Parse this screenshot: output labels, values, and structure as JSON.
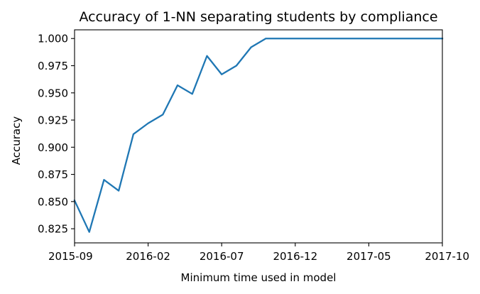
{
  "chart_data": {
    "type": "line",
    "title": "Accuracy of 1-NN separating students by compliance",
    "xlabel": "Minimum time used in model",
    "ylabel": "Accuracy",
    "xlim": [
      "2015-09",
      "2017-10"
    ],
    "ylim": [
      0.812,
      1.008
    ],
    "x_ticks": [
      "2015-09",
      "2016-02",
      "2016-07",
      "2016-12",
      "2017-05",
      "2017-10"
    ],
    "y_ticks": [
      "0.825",
      "0.850",
      "0.875",
      "0.900",
      "0.925",
      "0.950",
      "0.975",
      "1.000"
    ],
    "grid": false,
    "series": [
      {
        "color": "#1f77b4",
        "x": [
          "2015-09",
          "2015-10",
          "2015-11",
          "2015-12",
          "2016-01",
          "2016-02",
          "2016-03",
          "2016-04",
          "2016-05",
          "2016-06",
          "2016-07",
          "2016-08",
          "2016-09",
          "2016-10",
          "2016-11",
          "2016-12",
          "2017-01",
          "2017-02",
          "2017-03",
          "2017-04",
          "2017-05",
          "2017-06",
          "2017-07",
          "2017-08",
          "2017-09",
          "2017-10"
        ],
        "values": [
          0.851,
          0.822,
          0.87,
          0.86,
          0.912,
          0.922,
          0.93,
          0.957,
          0.949,
          0.984,
          0.967,
          0.975,
          0.992,
          1.0,
          1.0,
          1.0,
          1.0,
          1.0,
          1.0,
          1.0,
          1.0,
          1.0,
          1.0,
          1.0,
          1.0,
          1.0
        ]
      }
    ]
  }
}
